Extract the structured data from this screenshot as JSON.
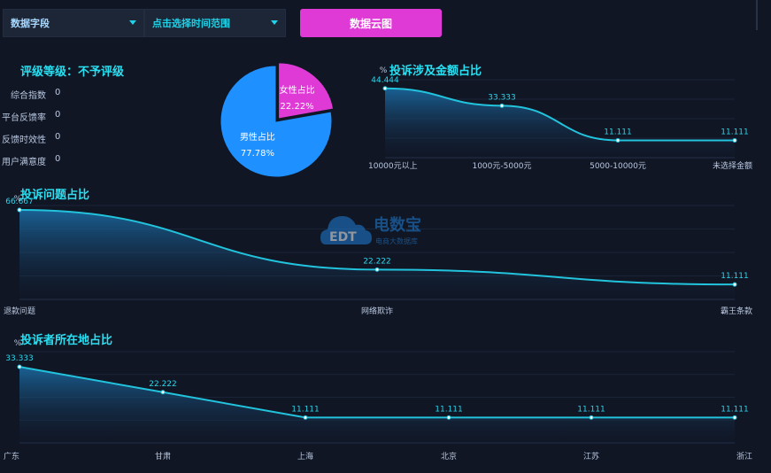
{
  "toolbar": {
    "field_dropdown": "数据字段",
    "time_dropdown": "点击选择时间范围",
    "cloud_button": "数据云图"
  },
  "rating": {
    "title": "评级等级：不予评级",
    "items": [
      {
        "label": "综合指数",
        "value": "0"
      },
      {
        "label": "平台反馈率",
        "value": "0"
      },
      {
        "label": "反馈时效性",
        "value": "0"
      },
      {
        "label": "用户满意度",
        "value": "0"
      }
    ]
  },
  "watermark": {
    "brand": "电数宝",
    "sub": "电商大数据库",
    "logo": "EDT"
  },
  "colors": {
    "female": "#e03ad6",
    "male": "#1e90ff",
    "line": "#22c3dc",
    "title": "#28e0f2"
  },
  "chart_data": [
    {
      "type": "pie",
      "slices": [
        {
          "name": "女性占比",
          "value": 22.22,
          "label": "22.22%"
        },
        {
          "name": "男性占比",
          "value": 77.78,
          "label": "77.78%"
        }
      ]
    },
    {
      "type": "area",
      "title": "投诉涉及金额占比",
      "ylabel": "%",
      "categories": [
        "10000元以上",
        "1000元-5000元",
        "5000-10000元",
        "未选择金额"
      ],
      "values": [
        44.444,
        33.333,
        11.111,
        11.111
      ],
      "labels": [
        "44.444",
        "33.333",
        "11.111",
        "11.111"
      ]
    },
    {
      "type": "area",
      "title": "投诉问题占比",
      "ylabel": "%",
      "categories": [
        "退款问题",
        "网络欺诈",
        "霸王条款"
      ],
      "values": [
        66.667,
        22.222,
        11.111
      ],
      "labels": [
        "66.667",
        "22.222",
        "11.111"
      ]
    },
    {
      "type": "area",
      "title": "投诉者所在地占比",
      "ylabel": "%",
      "categories": [
        "广东",
        "甘肃",
        "上海",
        "北京",
        "江苏",
        "浙江"
      ],
      "values": [
        33.333,
        22.222,
        11.111,
        11.111,
        11.111,
        11.111
      ],
      "labels": [
        "33.333",
        "22.222",
        "11.111",
        "11.111",
        "11.111",
        "11.111"
      ]
    }
  ]
}
